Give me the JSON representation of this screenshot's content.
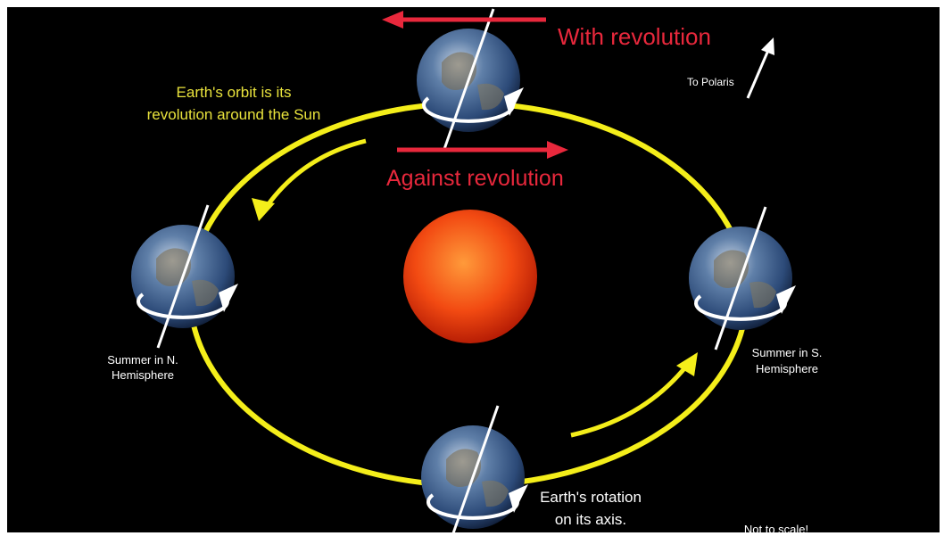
{
  "labels": {
    "with_revolution": "With revolution",
    "against_revolution": "Against revolution",
    "orbit": [
      "Earth's orbit is its",
      "revolution around the Sun"
    ],
    "polaris": "To Polaris",
    "summer_north": [
      "Summer in N.",
      "Hemisphere"
    ],
    "summer_south": [
      "Summer in S.",
      "Hemisphere"
    ],
    "rotation": [
      "Earth's rotation",
      "on its axis."
    ],
    "scale_note": "Not to scale!"
  }
}
